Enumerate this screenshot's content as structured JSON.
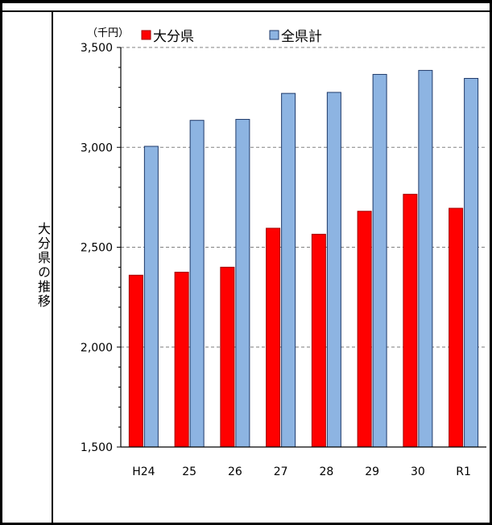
{
  "side_label": "大分県の推移",
  "chart_data": {
    "type": "bar",
    "unit_label": "（千円）",
    "categories": [
      "H24",
      "25",
      "26",
      "27",
      "28",
      "29",
      "30",
      "R1"
    ],
    "series": [
      {
        "name": "大分県",
        "color": "#ff0000",
        "values": [
          2360,
          2375,
          2400,
          2595,
          2565,
          2680,
          2765,
          2695
        ]
      },
      {
        "name": "全県計",
        "color": "#8db4e2",
        "values": [
          3005,
          3135,
          3140,
          3270,
          3275,
          3365,
          3385,
          3345
        ]
      }
    ],
    "ylim": [
      1500,
      3500
    ],
    "yticks": [
      "1,500",
      "2,000",
      "2,500",
      "3,000",
      "3,500"
    ],
    "grid": true,
    "legend": "top"
  }
}
